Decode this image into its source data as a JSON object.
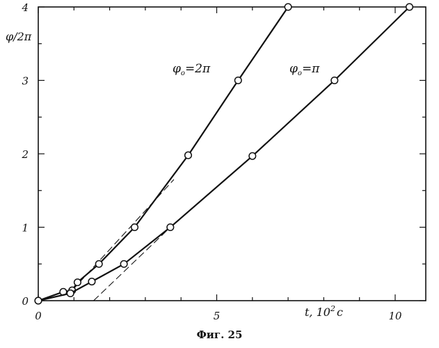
{
  "figure_caption": "Фиг. 25",
  "chart_data": {
    "type": "line",
    "title": "",
    "ylabel": "φ/2π",
    "xlabel_prefix": "t, 10",
    "xlabel_exp": "2",
    "xlabel_unit": "c",
    "xlim": [
      0,
      11
    ],
    "ylim": [
      0,
      4
    ],
    "x_ticks": [
      0,
      5,
      10
    ],
    "y_ticks": [
      0,
      1,
      2,
      3,
      4
    ],
    "grid": false,
    "series": [
      {
        "name": "φo=2π",
        "label_main": "φ",
        "label_sub": "o",
        "label_rest": "=2π",
        "x": [
          0,
          0.7,
          0.95,
          1.1,
          1.7,
          2.7,
          4.2,
          5.6,
          7.0
        ],
        "y": [
          0,
          0.12,
          0.14,
          0.25,
          0.5,
          1.0,
          1.98,
          3.0,
          4.0
        ],
        "asymptote": {
          "x": [
            0.95,
            3.8
          ],
          "y": [
            0.14,
            1.65
          ]
        }
      },
      {
        "name": "φo=π",
        "label_main": "φ",
        "label_sub": "o",
        "label_rest": "=π",
        "x": [
          0,
          0.9,
          1.5,
          2.4,
          3.7,
          6.0,
          8.3,
          10.4
        ],
        "y": [
          0,
          0.1,
          0.26,
          0.5,
          1.0,
          1.97,
          3.0,
          4.0
        ],
        "asymptote": {
          "x": [
            1.55,
            3.7
          ],
          "y": [
            0.0,
            1.0
          ]
        }
      }
    ]
  }
}
